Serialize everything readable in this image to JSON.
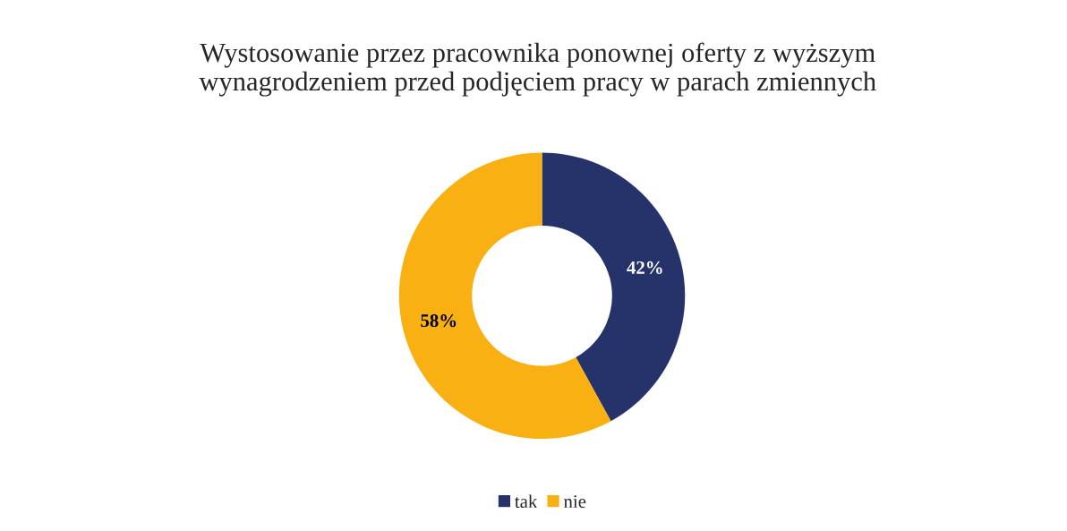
{
  "chart_data": {
    "type": "donut",
    "title": "Wystosowanie przez pracownika ponownej oferty z wyższym\nwynagrodzeniem przed podjęciem pracy w parach zmiennych",
    "categories": [
      "tak",
      "nie"
    ],
    "values": [
      42,
      58
    ],
    "colors": [
      "#26336b",
      "#f8b013"
    ],
    "value_labels": [
      "42%",
      "58%"
    ],
    "legend": "bottom"
  }
}
